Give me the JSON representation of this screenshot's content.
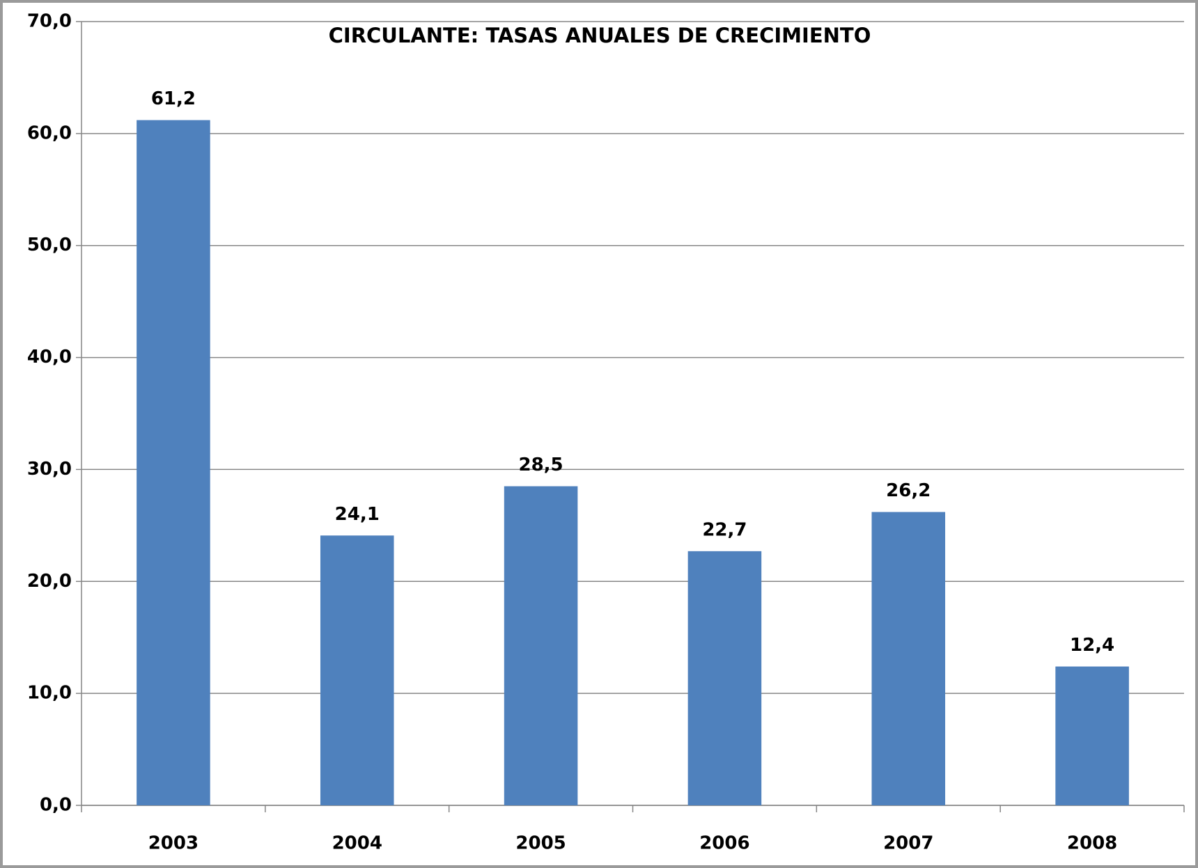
{
  "chart_data": {
    "type": "bar",
    "title": "CIRCULANTE: TASAS ANUALES DE CRECIMIENTO",
    "categories": [
      "2003",
      "2004",
      "2005",
      "2006",
      "2007",
      "2008"
    ],
    "values": [
      61.2,
      24.1,
      28.5,
      22.7,
      26.2,
      12.4
    ],
    "value_labels": [
      "61,2",
      "24,1",
      "28,5",
      "22,7",
      "26,2",
      "12,4"
    ],
    "color": "#4f81bd",
    "ylim": [
      0,
      70
    ],
    "yticks": [
      {
        "value": 0,
        "label": "0,0"
      },
      {
        "value": 10,
        "label": "10,0"
      },
      {
        "value": 20,
        "label": "20,0"
      },
      {
        "value": 30,
        "label": "30,0"
      },
      {
        "value": 40,
        "label": "40,0"
      },
      {
        "value": 50,
        "label": "50,0"
      },
      {
        "value": 60,
        "label": "60,0"
      },
      {
        "value": 70,
        "label": "70,0"
      }
    ],
    "grid": true
  }
}
